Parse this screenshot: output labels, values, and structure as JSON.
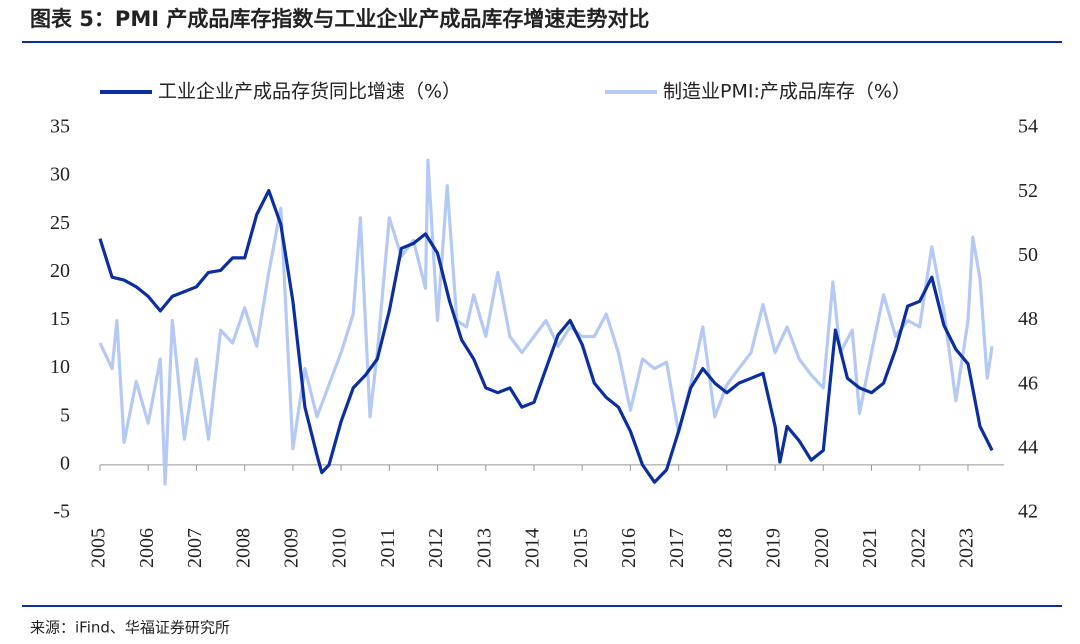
{
  "title": "图表 5：PMI 产成品库存指数与工业企业产成品库存增速走势对比",
  "source": "来源：iFind、华福证券研究所",
  "chart_data": {
    "type": "line",
    "legend": "top",
    "xlim": [
      2005,
      2023.75
    ],
    "xticks": [
      2005,
      2006,
      2007,
      2008,
      2009,
      2010,
      2011,
      2012,
      2013,
      2014,
      2015,
      2016,
      2017,
      2018,
      2019,
      2020,
      2021,
      2022,
      2023
    ],
    "ylim": [
      -5,
      35
    ],
    "yticks": [
      -5,
      0,
      5,
      10,
      15,
      20,
      25,
      30,
      35
    ],
    "y2lim": [
      42,
      54
    ],
    "y2ticks": [
      42,
      44,
      46,
      48,
      50,
      52,
      54
    ],
    "series": [
      {
        "name": "工业企业产成品存货同比增速（%）",
        "color": "#0b2ea0",
        "x": [
          2005.0,
          2005.25,
          2005.5,
          2005.75,
          2006.0,
          2006.25,
          2006.5,
          2006.75,
          2007.0,
          2007.25,
          2007.5,
          2007.75,
          2008.0,
          2008.25,
          2008.5,
          2008.75,
          2009.0,
          2009.25,
          2009.5,
          2009.6,
          2009.75,
          2010.0,
          2010.25,
          2010.5,
          2010.75,
          2011.0,
          2011.25,
          2011.5,
          2011.75,
          2012.0,
          2012.25,
          2012.5,
          2012.75,
          2013.0,
          2013.25,
          2013.5,
          2013.75,
          2014.0,
          2014.25,
          2014.5,
          2014.75,
          2015.0,
          2015.25,
          2015.5,
          2015.75,
          2016.0,
          2016.25,
          2016.5,
          2016.75,
          2017.0,
          2017.25,
          2017.5,
          2017.75,
          2018.0,
          2018.25,
          2018.5,
          2018.75,
          2019.0,
          2019.1,
          2019.25,
          2019.5,
          2019.75,
          2020.0,
          2020.25,
          2020.5,
          2020.75,
          2021.0,
          2021.25,
          2021.5,
          2021.75,
          2022.0,
          2022.25,
          2022.5,
          2022.75,
          2023.0,
          2023.25,
          2023.5
        ],
        "values": [
          23.5,
          19.5,
          19.2,
          18.5,
          17.5,
          16,
          17.5,
          18,
          18.5,
          20,
          20.2,
          21.5,
          21.5,
          26,
          28.5,
          25,
          17,
          6,
          1,
          -0.8,
          0,
          4.5,
          8,
          9.3,
          11,
          16,
          22.5,
          23,
          24,
          22,
          17,
          13,
          11,
          8,
          7.5,
          8,
          6,
          6.5,
          10,
          13.5,
          15,
          12.5,
          8.5,
          7,
          6,
          3.5,
          0,
          -1.8,
          -0.5,
          3.5,
          8,
          10,
          8.5,
          7.5,
          8.5,
          9,
          9.5,
          4,
          0.3,
          4,
          2.5,
          0.5,
          1.5,
          14,
          9,
          8,
          7.5,
          8.5,
          12,
          16.5,
          17,
          19.5,
          14.5,
          12,
          10.5,
          4,
          1.5
        ]
      },
      {
        "name": "制造业PMI:产成品库存（%）",
        "color": "#b4c9f5",
        "axis": "y2",
        "x": [
          2005.0,
          2005.25,
          2005.35,
          2005.5,
          2005.75,
          2006.0,
          2006.25,
          2006.35,
          2006.5,
          2006.75,
          2007.0,
          2007.25,
          2007.5,
          2007.75,
          2008.0,
          2008.25,
          2008.5,
          2008.75,
          2009.0,
          2009.25,
          2009.5,
          2009.75,
          2010.0,
          2010.25,
          2010.4,
          2010.6,
          2010.75,
          2011.0,
          2011.25,
          2011.5,
          2011.75,
          2011.8,
          2012.0,
          2012.2,
          2012.4,
          2012.6,
          2012.75,
          2013.0,
          2013.25,
          2013.5,
          2013.75,
          2014.0,
          2014.25,
          2014.5,
          2014.75,
          2015.0,
          2015.25,
          2015.5,
          2015.75,
          2016.0,
          2016.25,
          2016.5,
          2016.75,
          2017.0,
          2017.25,
          2017.5,
          2017.75,
          2018.0,
          2018.25,
          2018.5,
          2018.75,
          2019.0,
          2019.25,
          2019.5,
          2019.75,
          2020.0,
          2020.2,
          2020.35,
          2020.6,
          2020.75,
          2021.0,
          2021.25,
          2021.5,
          2021.75,
          2022.0,
          2022.25,
          2022.5,
          2022.75,
          2023.0,
          2023.1,
          2023.25,
          2023.4,
          2023.5
        ],
        "values": [
          47.3,
          46.5,
          48,
          44.2,
          46.1,
          44.8,
          46.8,
          42.9,
          48,
          44.3,
          46.8,
          44.3,
          47.7,
          47.3,
          48.4,
          47.2,
          49.5,
          51.5,
          44,
          46.5,
          45,
          46,
          47,
          48.2,
          51.2,
          45,
          47,
          51.2,
          50,
          50.5,
          49,
          53,
          48,
          52.2,
          48,
          47.8,
          48.8,
          47.5,
          49.5,
          47.5,
          47,
          47.5,
          48,
          47.2,
          47.8,
          47.5,
          47.5,
          48.2,
          47,
          45.2,
          46.8,
          46.5,
          46.7,
          44.5,
          46,
          47.8,
          45,
          46,
          46.5,
          47,
          48.5,
          47,
          47.8,
          46.8,
          46.3,
          45.9,
          49.2,
          47,
          47.7,
          45.1,
          47,
          48.8,
          47.5,
          48,
          47.8,
          50.3,
          48.3,
          45.5,
          48,
          50.6,
          49.3,
          46.2,
          47.2
        ]
      }
    ]
  }
}
